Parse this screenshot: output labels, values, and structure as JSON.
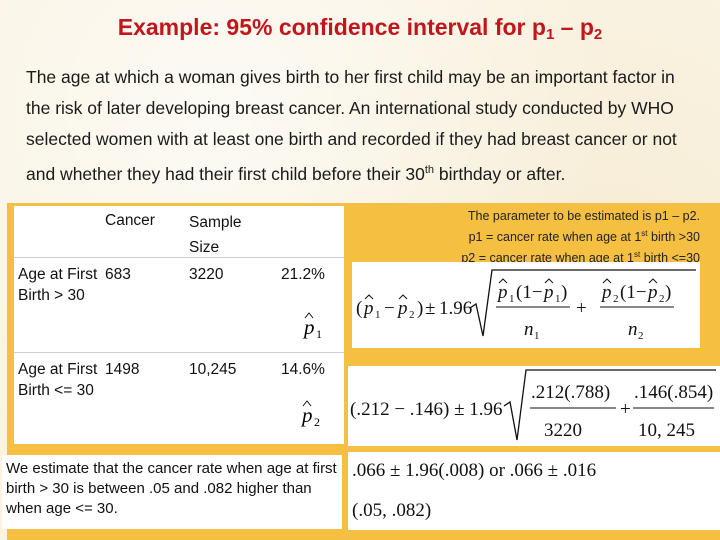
{
  "title": {
    "text": "Example: 95% confidence interval for p",
    "sub1": "1",
    "dash": " – p",
    "sub2": "2"
  },
  "intro": {
    "text": "The age at which a woman gives birth to her first child may be an important factor in the risk of later developing breast cancer. An international study conducted by WHO selected women with at least one birth and recorded if they had breast cancer or not and whether they had their first child before their 30",
    "sup": "th",
    "tail": " birthday or after."
  },
  "table": {
    "headers": [
      "Cancer",
      "Sample Size"
    ],
    "rows": [
      {
        "label": "Age at First Birth > 30",
        "cancer": "683",
        "size": "3220",
        "rate": "21.2%"
      },
      {
        "label": "Age at First Birth <= 30",
        "cancer": "1498",
        "size": "10,245",
        "rate": "14.6%"
      }
    ]
  },
  "parameter": {
    "line1": "The parameter to be estimated is p1 – p2.",
    "line2a": "p1 = cancer rate when age at 1",
    "line2sup": "st",
    "line2b": " birth >30",
    "line3a": "p2 = cancer rate when age at 1",
    "line3sup": "st",
    "line3b": " birth <=30"
  },
  "formulas": {
    "general": {
      "z": "1.96",
      "n1": "n",
      "n2": "n"
    },
    "plug": {
      "diff": "(.212 − .146) ± 1.96",
      "num1": ".212(.788)",
      "den1": "3220",
      "num2": ".146(.854)",
      "den2": "10, 245"
    },
    "result1": ".066 ± 1.96(.008) or .066 ± .016",
    "result2": "(.05, .082)"
  },
  "conclusion": "We estimate that the cancer rate when age at first birth > 30 is between .05 and .082 higher than when age <= 30."
}
